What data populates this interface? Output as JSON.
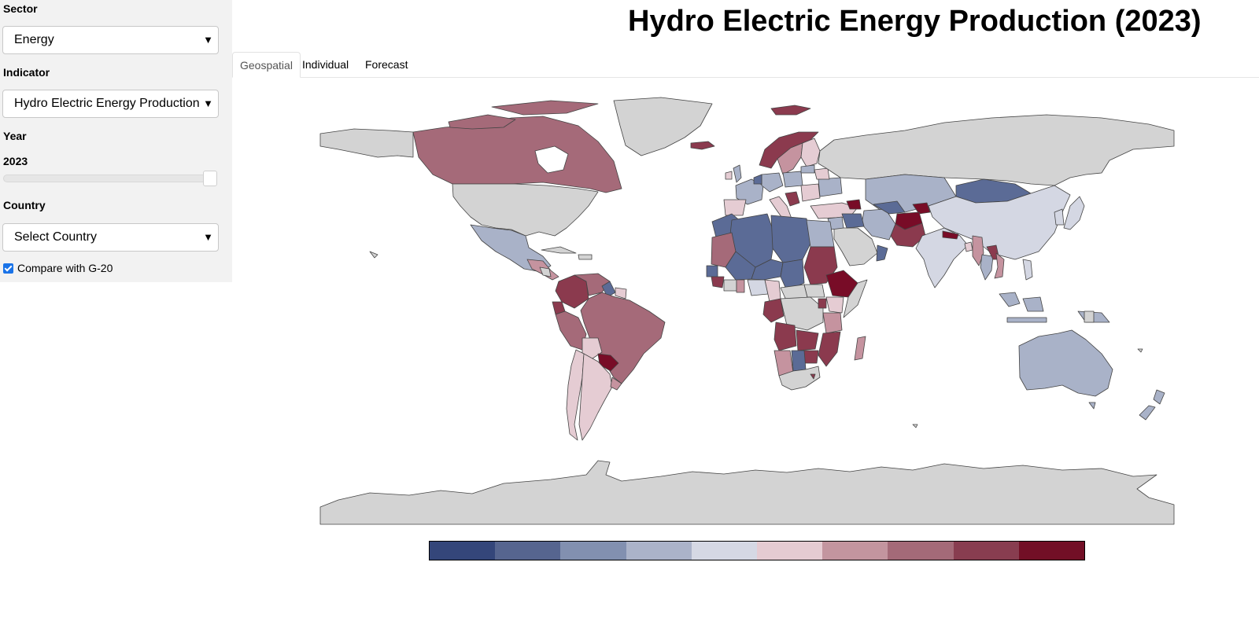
{
  "sidebar": {
    "sector_label": "Sector",
    "sector_value": "Energy",
    "indicator_label": "Indicator",
    "indicator_value": "Hydro Electric Energy Production",
    "year_label": "Year",
    "year_value": "2023",
    "year_slider_fraction": 1.0,
    "country_label": "Country",
    "country_value": "Select Country",
    "compare_label": "Compare with G-20",
    "compare_checked": true
  },
  "title": "Hydro Electric Energy Production (2023)",
  "tabs": [
    {
      "label": "Geospatial",
      "active": true
    },
    {
      "label": "Individual",
      "active": false
    },
    {
      "label": "Forecast",
      "active": false
    }
  ],
  "map": {
    "type": "choropleth",
    "no_data_color": "#d3d3d3",
    "colors": {
      "dark_blue": "#5b6b96",
      "light_blue": "#a9b2c8",
      "pale_blue": "#d4d7e3",
      "pale_pink": "#e5ccd3",
      "pink": "#c5939f",
      "mauve": "#a56a79",
      "dark_red": "#8b3a4e",
      "crimson": "#780c27"
    },
    "legend_colors": [
      "#34467a",
      "#56658f",
      "#8290b0",
      "#abb3c9",
      "#d5d8e4",
      "#e5cbd2",
      "#c3959f",
      "#a46a78",
      "#883d50",
      "#720f26"
    ]
  }
}
